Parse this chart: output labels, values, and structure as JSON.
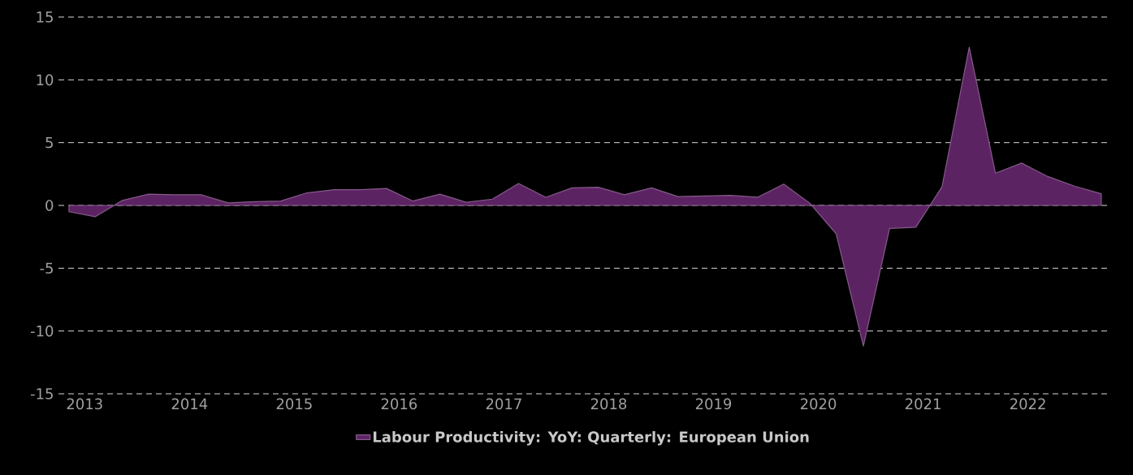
{
  "chart_data": {
    "type": "area",
    "x": [
      2012.85,
      2013.1,
      2013.36,
      2013.61,
      2013.86,
      2014.11,
      2014.37,
      2014.62,
      2014.87,
      2015.12,
      2015.38,
      2015.63,
      2015.88,
      2016.13,
      2016.39,
      2016.64,
      2016.89,
      2017.14,
      2017.4,
      2017.65,
      2017.9,
      2018.15,
      2018.41,
      2018.66,
      2018.91,
      2019.16,
      2019.42,
      2019.67,
      2019.92,
      2020.17,
      2020.43,
      2020.68,
      2020.93,
      2021.18,
      2021.44,
      2021.69,
      2021.94,
      2022.19,
      2022.45,
      2022.7
    ],
    "series": [
      {
        "name": "Labour Productivity: YoY: Quarterly: European Union",
        "color": "#5c2363",
        "values": [
          -0.5,
          -0.9,
          0.4,
          0.9,
          0.85,
          0.85,
          0.2,
          0.3,
          0.35,
          1.0,
          1.25,
          1.25,
          1.35,
          0.35,
          0.9,
          0.25,
          0.5,
          1.75,
          0.65,
          1.4,
          1.45,
          0.85,
          1.4,
          0.7,
          0.75,
          0.8,
          0.65,
          1.7,
          0.17,
          -2.26,
          -11.2,
          -1.83,
          -1.74,
          1.48,
          12.6,
          2.57,
          3.37,
          2.3,
          1.52,
          0.93
        ]
      }
    ],
    "xlim": [
      2012.75,
      2022.77
    ],
    "xticks": [
      2013,
      2014,
      2015,
      2016,
      2017,
      2018,
      2019,
      2020,
      2021,
      2022
    ],
    "ylim": [
      -15,
      15
    ],
    "yticks": [
      -15,
      -10,
      -5,
      0,
      5,
      10,
      15
    ],
    "grid": "y",
    "legend": "bottom"
  }
}
